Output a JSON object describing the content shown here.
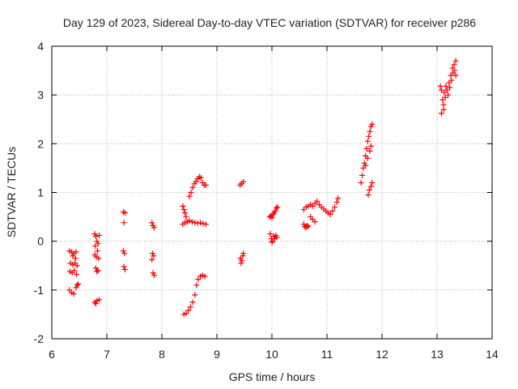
{
  "chart_data": {
    "type": "scatter",
    "title": "Day 129 of 2023, Sidereal Day-to-day VTEC variation (SDTVAR) for receiver p286",
    "xlabel": "GPS time / hours",
    "ylabel": "SDTVAR / TECUs",
    "xlim": [
      6,
      14
    ],
    "ylim": [
      -2,
      4
    ],
    "xticks": [
      6,
      7,
      8,
      9,
      10,
      11,
      12,
      13,
      14
    ],
    "yticks": [
      -2,
      -1,
      0,
      1,
      2,
      3,
      4
    ],
    "grid": true,
    "marker": "+",
    "color": "#ff0000",
    "series": [
      {
        "name": "SDTVAR",
        "points": [
          [
            6.32,
            -0.2
          ],
          [
            6.36,
            -0.22
          ],
          [
            6.4,
            -0.25
          ],
          [
            6.44,
            -0.22
          ],
          [
            6.34,
            -0.45
          ],
          [
            6.38,
            -0.48
          ],
          [
            6.42,
            -0.45
          ],
          [
            6.46,
            -0.5
          ],
          [
            6.33,
            -0.62
          ],
          [
            6.37,
            -0.65
          ],
          [
            6.41,
            -0.6
          ],
          [
            6.45,
            -0.68
          ],
          [
            6.32,
            -1.0
          ],
          [
            6.36,
            -1.05
          ],
          [
            6.4,
            -1.08
          ],
          [
            6.44,
            -0.95
          ],
          [
            6.46,
            -0.9
          ],
          [
            6.48,
            -0.88
          ],
          [
            6.38,
            -0.3
          ],
          [
            6.43,
            -0.35
          ],
          [
            6.78,
            0.15
          ],
          [
            6.8,
            0.1
          ],
          [
            6.82,
            0.0
          ],
          [
            6.84,
            -0.05
          ],
          [
            6.86,
            0.12
          ],
          [
            6.79,
            -0.1
          ],
          [
            6.83,
            -0.2
          ],
          [
            6.78,
            -0.28
          ],
          [
            6.81,
            -0.32
          ],
          [
            6.85,
            -0.35
          ],
          [
            6.8,
            -0.55
          ],
          [
            6.84,
            -0.6
          ],
          [
            6.82,
            -0.62
          ],
          [
            6.78,
            -1.25
          ],
          [
            6.82,
            -1.22
          ],
          [
            6.86,
            -1.2
          ],
          [
            6.8,
            -1.28
          ],
          [
            7.3,
            0.6
          ],
          [
            7.33,
            0.58
          ],
          [
            7.31,
            0.38
          ],
          [
            7.3,
            -0.2
          ],
          [
            7.32,
            -0.25
          ],
          [
            7.31,
            -0.52
          ],
          [
            7.33,
            -0.58
          ],
          [
            7.82,
            0.38
          ],
          [
            7.84,
            0.32
          ],
          [
            7.86,
            0.28
          ],
          [
            7.83,
            -0.25
          ],
          [
            7.85,
            -0.3
          ],
          [
            7.82,
            -0.38
          ],
          [
            7.84,
            -0.65
          ],
          [
            7.86,
            -0.7
          ],
          [
            8.38,
            0.72
          ],
          [
            8.4,
            0.65
          ],
          [
            8.42,
            0.58
          ],
          [
            8.44,
            0.5
          ],
          [
            8.38,
            0.35
          ],
          [
            8.42,
            0.38
          ],
          [
            8.46,
            0.4
          ],
          [
            8.5,
            0.42
          ],
          [
            8.55,
            0.4
          ],
          [
            8.6,
            0.38
          ],
          [
            8.65,
            0.37
          ],
          [
            8.7,
            0.38
          ],
          [
            8.75,
            0.36
          ],
          [
            8.8,
            0.35
          ],
          [
            8.5,
            0.92
          ],
          [
            8.53,
            1.0
          ],
          [
            8.56,
            1.1
          ],
          [
            8.59,
            1.18
          ],
          [
            8.62,
            1.22
          ],
          [
            8.65,
            1.28
          ],
          [
            8.68,
            1.32
          ],
          [
            8.71,
            1.3
          ],
          [
            8.74,
            1.2
          ],
          [
            8.77,
            1.15
          ],
          [
            8.8,
            1.15
          ],
          [
            8.4,
            -1.5
          ],
          [
            8.44,
            -1.48
          ],
          [
            8.48,
            -1.42
          ],
          [
            8.52,
            -1.35
          ],
          [
            8.56,
            -1.25
          ],
          [
            8.6,
            -1.1
          ],
          [
            8.63,
            -0.9
          ],
          [
            8.66,
            -0.78
          ],
          [
            8.7,
            -0.72
          ],
          [
            8.74,
            -0.7
          ],
          [
            8.78,
            -0.72
          ],
          [
            9.42,
            1.15
          ],
          [
            9.45,
            1.18
          ],
          [
            9.48,
            1.22
          ],
          [
            9.43,
            -0.35
          ],
          [
            9.45,
            -0.4
          ],
          [
            9.47,
            -0.3
          ],
          [
            9.44,
            -0.45
          ],
          [
            9.48,
            -0.25
          ],
          [
            9.96,
            0.5
          ],
          [
            9.98,
            0.52
          ],
          [
            10.0,
            0.48
          ],
          [
            10.02,
            0.55
          ],
          [
            10.04,
            0.58
          ],
          [
            10.06,
            0.62
          ],
          [
            10.08,
            0.68
          ],
          [
            10.1,
            0.7
          ],
          [
            9.97,
            0.15
          ],
          [
            9.99,
            0.05
          ],
          [
            10.01,
            0.0
          ],
          [
            10.03,
            0.1
          ],
          [
            10.05,
            0.05
          ],
          [
            10.07,
            0.12
          ],
          [
            10.09,
            0.08
          ],
          [
            10.0,
            -0.02
          ],
          [
            10.58,
            0.35
          ],
          [
            10.6,
            0.3
          ],
          [
            10.62,
            0.28
          ],
          [
            10.64,
            0.32
          ],
          [
            10.66,
            0.3
          ],
          [
            10.58,
            0.65
          ],
          [
            10.62,
            0.7
          ],
          [
            10.66,
            0.72
          ],
          [
            10.7,
            0.75
          ],
          [
            10.74,
            0.72
          ],
          [
            10.78,
            0.78
          ],
          [
            10.82,
            0.82
          ],
          [
            10.86,
            0.75
          ],
          [
            10.9,
            0.7
          ],
          [
            10.94,
            0.66
          ],
          [
            10.98,
            0.62
          ],
          [
            11.02,
            0.58
          ],
          [
            11.06,
            0.55
          ],
          [
            11.1,
            0.62
          ],
          [
            11.14,
            0.7
          ],
          [
            11.18,
            0.8
          ],
          [
            11.2,
            0.88
          ],
          [
            10.7,
            0.5
          ],
          [
            10.74,
            0.45
          ],
          [
            10.78,
            0.4
          ],
          [
            11.62,
            1.2
          ],
          [
            11.64,
            1.35
          ],
          [
            11.66,
            1.5
          ],
          [
            11.68,
            1.6
          ],
          [
            11.7,
            1.75
          ],
          [
            11.72,
            1.9
          ],
          [
            11.74,
            2.05
          ],
          [
            11.76,
            2.15
          ],
          [
            11.78,
            2.25
          ],
          [
            11.8,
            2.35
          ],
          [
            11.82,
            2.4
          ],
          [
            11.7,
            1.55
          ],
          [
            11.74,
            1.7
          ],
          [
            11.78,
            1.85
          ],
          [
            11.8,
            1.95
          ],
          [
            11.75,
            0.95
          ],
          [
            11.77,
            1.05
          ],
          [
            11.8,
            1.12
          ],
          [
            11.82,
            1.2
          ],
          [
            13.06,
            3.18
          ],
          [
            13.08,
            3.1
          ],
          [
            13.1,
            2.9
          ],
          [
            13.12,
            2.8
          ],
          [
            13.08,
            2.62
          ],
          [
            13.12,
            2.7
          ],
          [
            13.15,
            2.95
          ],
          [
            13.18,
            3.1
          ],
          [
            13.22,
            3.25
          ],
          [
            13.25,
            3.4
          ],
          [
            13.28,
            3.55
          ],
          [
            13.31,
            3.62
          ],
          [
            13.34,
            3.7
          ],
          [
            13.2,
            3.0
          ],
          [
            13.23,
            3.15
          ],
          [
            13.26,
            3.3
          ],
          [
            13.29,
            3.45
          ],
          [
            13.32,
            3.5
          ],
          [
            13.34,
            3.4
          ],
          [
            13.16,
            3.18
          ],
          [
            13.13,
            3.05
          ]
        ]
      }
    ]
  }
}
